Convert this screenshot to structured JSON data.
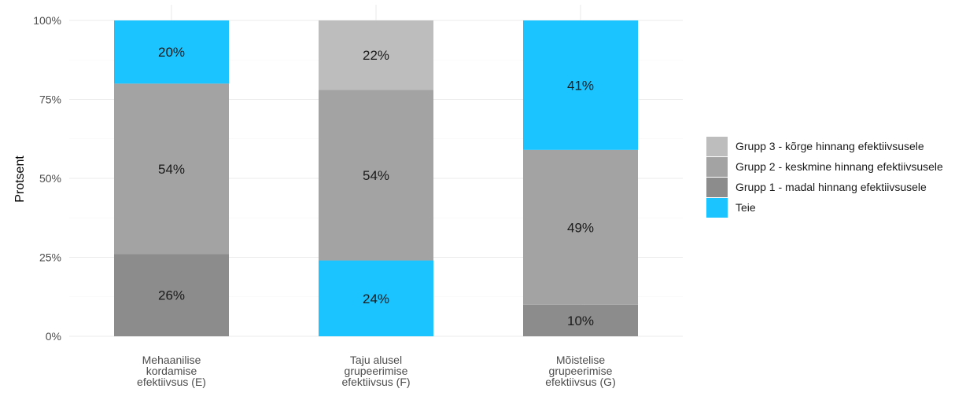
{
  "chart_data": {
    "type": "bar",
    "stacked": true,
    "ylabel": "Protsent",
    "xlabel": "",
    "ylim": [
      0,
      100
    ],
    "y_ticks": [
      "0%",
      "25%",
      "50%",
      "75%",
      "100%"
    ],
    "grid": true,
    "legend_position": "right",
    "categories": [
      [
        "Mehaanilise",
        "kordamise",
        "efektiivsus (E)"
      ],
      [
        "Taju alusel",
        "grupeerimise",
        "efektiivsus (F)"
      ],
      [
        "Mõistelise",
        "grupeerimise",
        "efektiivsus (G)"
      ]
    ],
    "series": [
      {
        "name": "Grupp 1 - madal hinnang efektiivsusele",
        "color": "#8c8c8c"
      },
      {
        "name": "Grupp 2 - keskmine hinnang efektiivsusele",
        "color": "#a3a3a3"
      },
      {
        "name": "Grupp 3 - kõrge hinnang efektiivsusele",
        "color": "#bdbdbd"
      },
      {
        "name": "Teie",
        "color": "#1cc4ff"
      }
    ],
    "bars": [
      {
        "segments": [
          {
            "series": "Grupp 1 - madal hinnang efektiivsusele",
            "value": 26,
            "label": "26%"
          },
          {
            "series": "Grupp 2 - keskmine hinnang efektiivsusele",
            "value": 54,
            "label": "54%"
          },
          {
            "series": "Teie",
            "value": 20,
            "label": "20%"
          }
        ]
      },
      {
        "segments": [
          {
            "series": "Teie",
            "value": 24,
            "label": "24%"
          },
          {
            "series": "Grupp 2 - keskmine hinnang efektiivsusele",
            "value": 54,
            "label": "54%"
          },
          {
            "series": "Grupp 3 - kõrge hinnang efektiivsusele",
            "value": 22,
            "label": "22%"
          }
        ]
      },
      {
        "segments": [
          {
            "series": "Grupp 1 - madal hinnang efektiivsusele",
            "value": 10,
            "label": "10%"
          },
          {
            "series": "Grupp 2 - keskmine hinnang efektiivsusele",
            "value": 49,
            "label": "49%"
          },
          {
            "series": "Teie",
            "value": 41,
            "label": "41%"
          }
        ]
      }
    ],
    "legend_order": [
      "Grupp 3 - kõrge hinnang efektiivsusele",
      "Grupp 2 - keskmine hinnang efektiivsusele",
      "Grupp 1 - madal hinnang efektiivsusele",
      "Teie"
    ]
  }
}
